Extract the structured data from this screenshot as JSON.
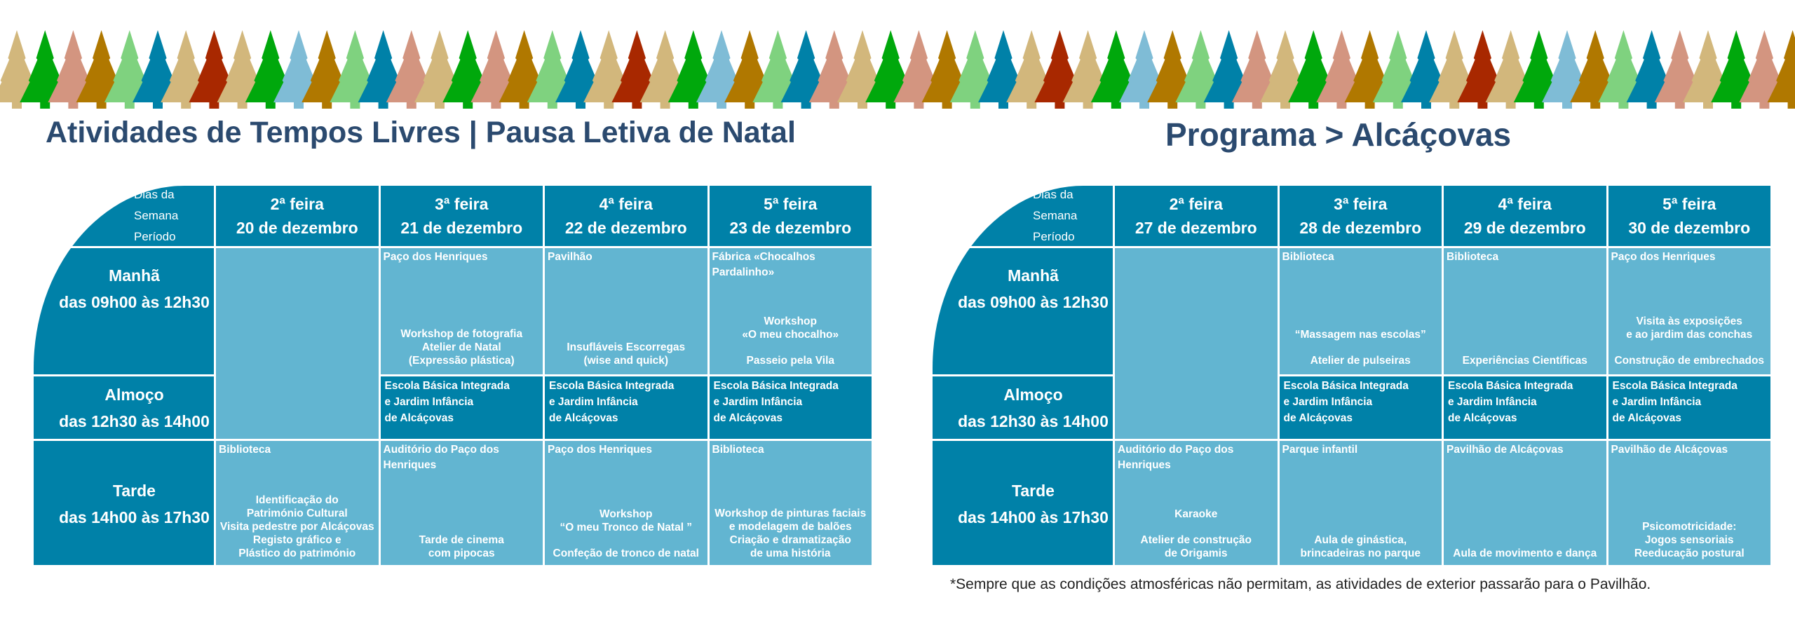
{
  "banner": {
    "tree_colors": [
      "#d2b77c",
      "#00a80c",
      "#d39580",
      "#b07800",
      "#7fd27f",
      "#0081a8",
      "#d2b77c",
      "#a82800",
      "#d2b77c",
      "#00a80c",
      "#7fbcd6",
      "#b07800",
      "#7fd27f",
      "#0081a8",
      "#d39580"
    ]
  },
  "colors": {
    "dark": "#0081a8",
    "light": "#62b5d1",
    "title": "#2b4a6f"
  },
  "tables": [
    {
      "title": "Atividades de Tempos Livres | Pausa Letiva de Natal",
      "corner": {
        "days": "Dias da Semana",
        "period": "Período"
      },
      "days": [
        {
          "day": "2ª feira",
          "date": "20 de dezembro"
        },
        {
          "day": "3ª feira",
          "date": "21 de dezembro"
        },
        {
          "day": "4ª feira",
          "date": "22 de dezembro"
        },
        {
          "day": "5ª feira",
          "date": "23 de dezembro"
        }
      ],
      "periods": [
        {
          "name": "Manhã",
          "time": "das 09h00 às 12h30"
        },
        {
          "name": "Almoço",
          "time": "das 12h30 às 14h00"
        },
        {
          "name": "Tarde",
          "time": "das 14h00 às 17h30"
        }
      ],
      "morning": [
        null,
        {
          "location": "Paço dos Henriques",
          "groups": [
            [
              "Workshop de fotografia",
              "Atelier de Natal",
              "(Expressão plástica)"
            ]
          ]
        },
        {
          "location": "Pavilhão",
          "groups": [
            [
              "Insufláveis Escorregas",
              "(wise and quick)"
            ]
          ]
        },
        {
          "location": "Fábrica «Chocalhos Pardalinho»",
          "groups": [
            [
              "Workshop",
              "«O meu chocalho»"
            ],
            [
              "Passeio pela Vila"
            ]
          ]
        }
      ],
      "lunch": [
        null,
        [
          "Escola Básica Integrada",
          "e Jardim Infância",
          "de Alcáçovas"
        ],
        [
          "Escola Básica Integrada",
          "e Jardim Infância",
          "de Alcáçovas"
        ],
        [
          "Escola Básica Integrada",
          "e Jardim Infância",
          "de Alcáçovas"
        ]
      ],
      "afternoon": [
        {
          "location": "Biblioteca",
          "groups": [
            [
              "Identificação do",
              "Património Cultural",
              "Visita pedestre por Alcáçovas",
              "Registo gráfico e",
              "Plástico do património"
            ]
          ]
        },
        {
          "location": "Auditório do Paço dos Henriques",
          "groups": [
            [
              "Tarde de cinema",
              "com pipocas"
            ]
          ]
        },
        {
          "location": "Paço dos Henriques",
          "groups": [
            [
              "Workshop",
              "“O meu Tronco de Natal ”"
            ],
            [
              "Confeção de tronco de natal"
            ]
          ]
        },
        {
          "location": "Biblioteca",
          "groups": [
            [
              "Workshop de pinturas faciais",
              "e modelagem de balões",
              "Criação e dramatização",
              "de uma história"
            ]
          ]
        }
      ]
    },
    {
      "title": "Programa > Alcáçovas",
      "corner": {
        "days": "Dias da Semana",
        "period": "Período"
      },
      "days": [
        {
          "day": "2ª feira",
          "date": "27 de dezembro"
        },
        {
          "day": "3ª feira",
          "date": "28 de dezembro"
        },
        {
          "day": "4ª feira",
          "date": "29 de dezembro"
        },
        {
          "day": "5ª feira",
          "date": "30 de dezembro"
        }
      ],
      "periods": [
        {
          "name": "Manhã",
          "time": "das 09h00 às 12h30"
        },
        {
          "name": "Almoço",
          "time": "das 12h30 às 14h00"
        },
        {
          "name": "Tarde",
          "time": "das 14h00 às 17h30"
        }
      ],
      "morning": [
        null,
        {
          "location": "Biblioteca",
          "groups": [
            [
              "“Massagem nas escolas”"
            ],
            [
              "Atelier de pulseiras"
            ]
          ]
        },
        {
          "location": "Biblioteca",
          "groups": [
            [
              "Experiências Científicas"
            ]
          ]
        },
        {
          "location": "Paço dos Henriques",
          "groups": [
            [
              "Visita às exposições",
              "e ao jardim das conchas"
            ],
            [
              "Construção de embrechados"
            ]
          ]
        }
      ],
      "lunch": [
        null,
        [
          "Escola Básica Integrada",
          "e Jardim Infância",
          "de Alcáçovas"
        ],
        [
          "Escola Básica Integrada",
          "e Jardim Infância",
          "de Alcáçovas"
        ],
        [
          "Escola Básica Integrada",
          "e Jardim Infância",
          "de Alcáçovas"
        ]
      ],
      "afternoon": [
        {
          "location": "Auditório do Paço dos Henriques",
          "groups": [
            [
              "Karaoke"
            ],
            [
              "Atelier de construção",
              "de Origamis"
            ]
          ]
        },
        {
          "location": "Parque infantil",
          "groups": [
            [
              "Aula de ginástica,",
              "brincadeiras no parque"
            ]
          ]
        },
        {
          "location": "Pavilhão de Alcáçovas",
          "groups": [
            [
              "Aula de movimento e dança"
            ]
          ]
        },
        {
          "location": "Pavilhão de Alcáçovas",
          "groups": [
            [
              "Psicomotricidade:",
              "Jogos sensoriais",
              "Reeducação postural"
            ]
          ]
        }
      ]
    }
  ],
  "footnote": "*Sempre que as condições atmosféricas não permitam, as atividades de exterior passarão para o Pavilhão."
}
